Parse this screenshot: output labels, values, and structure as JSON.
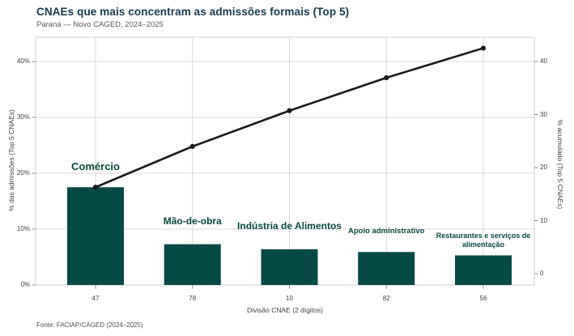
{
  "header": {
    "title": "CNAEs que mais concentram as admissões formais (Top 5)",
    "subtitle": "Paraná — Novo CAGED, 2024–2025"
  },
  "footer": {
    "source": "Fonte: FACIAP/CAGED (2024–2025)"
  },
  "chart_data": {
    "type": "pareto (bar + cumulative line)",
    "title": "CNAEs que mais concentram as admissões formais (Top 5)",
    "subtitle": "Paraná — Novo CAGED, 2024–2025",
    "categories": [
      "47",
      "78",
      "10",
      "82",
      "56"
    ],
    "category_names": [
      "Comércio",
      "Mão-de-obra",
      "Indústria de Alimentos",
      "Apoio administrativo",
      "Restaurantes e serviços de alimentação"
    ],
    "series": [
      {
        "name": "% das admissões (bars)",
        "type": "bar",
        "values": [
          17.5,
          7.3,
          6.4,
          5.9,
          5.3
        ]
      },
      {
        "name": "% acumulado (line)",
        "type": "line",
        "values": [
          17.5,
          24.8,
          31.2,
          37.1,
          42.4
        ]
      }
    ],
    "xlabel": "Divisão CNAE (2 dígitos)",
    "ylabel_left": "% das admissões (Top 5 CNAEs)",
    "ylabel_right": "% acumulado (Top 5 CNAEs)",
    "yticks_left": {
      "values": [
        0,
        10,
        20,
        30,
        40
      ],
      "labels": [
        "0%",
        "10%",
        "20%",
        "30%",
        "40%"
      ]
    },
    "yticks_right": {
      "values": [
        0,
        10,
        20,
        30,
        40
      ],
      "labels": [
        "0",
        "10",
        "20",
        "30",
        "40"
      ]
    },
    "ylim_left": [
      0,
      44
    ],
    "grid": true,
    "legend": "none",
    "colors": {
      "bar": "#064a46",
      "line": "#1a1a1a",
      "category_label": "#0a4b41",
      "title": "#16394c",
      "gridline": "#d9d9d9",
      "panel_border": "#cfcfcf",
      "axis_text": "#3f3f3f",
      "tick_mark": "#8c8c8c"
    }
  }
}
